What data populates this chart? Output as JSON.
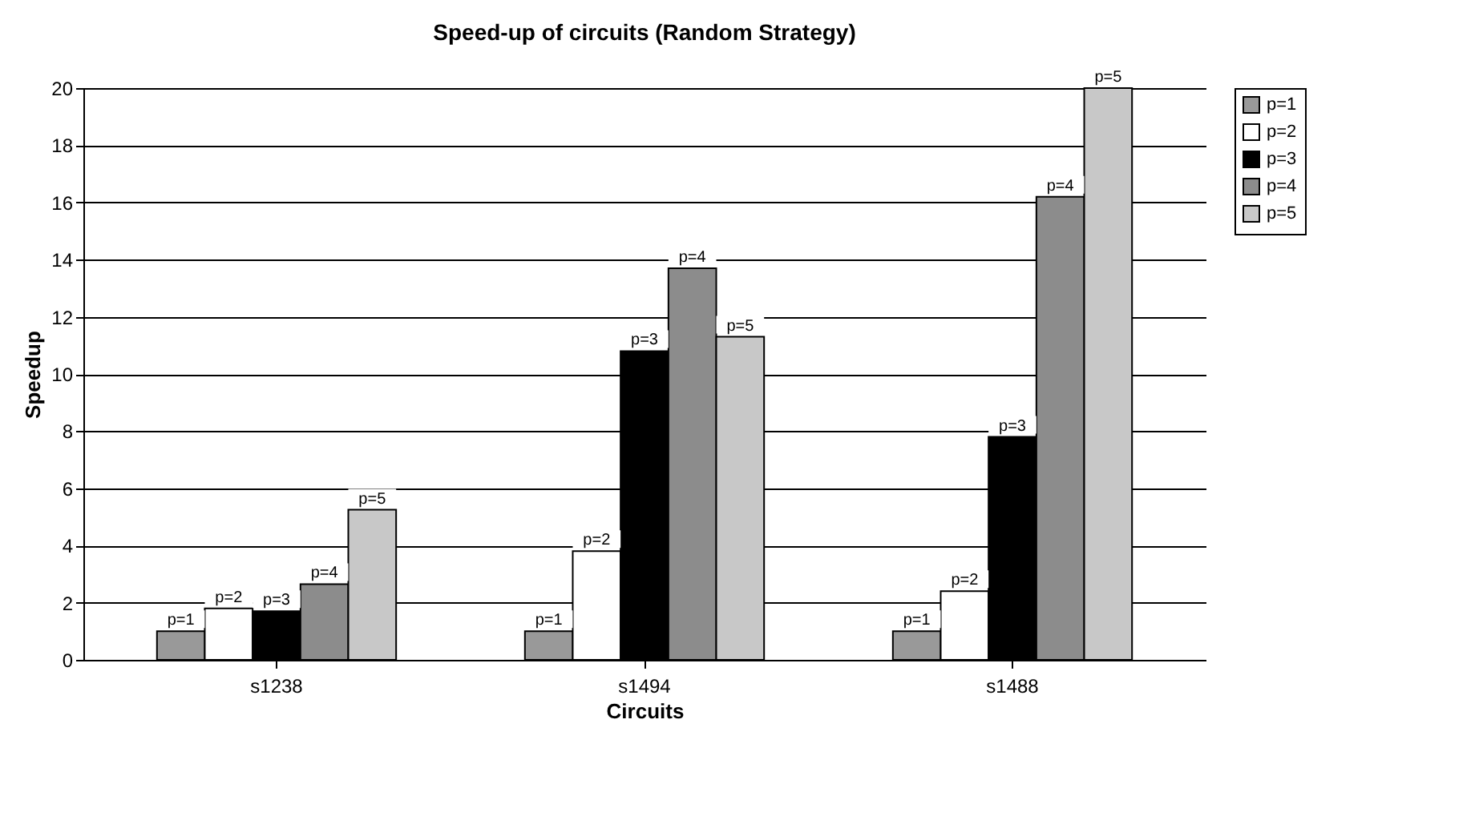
{
  "chart_data": {
    "type": "bar",
    "title": "Speed-up of circuits (Random Strategy)",
    "xlabel": "Circuits",
    "ylabel": "Speedup",
    "categories": [
      "s1238",
      "s1494",
      "s1488"
    ],
    "series": [
      {
        "name": "p=1",
        "color": "#999999",
        "values": [
          1,
          1,
          1
        ]
      },
      {
        "name": "p=2",
        "color": "#ffffff",
        "values": [
          1.8,
          3.8,
          2.4
        ]
      },
      {
        "name": "p=3",
        "color": "#000000",
        "values": [
          1.7,
          10.8,
          7.8
        ]
      },
      {
        "name": "p=4",
        "color": "#8c8c8c",
        "values": [
          2.65,
          13.7,
          16.2
        ]
      },
      {
        "name": "p=5",
        "color": "#c8c8c8",
        "values": [
          5.25,
          11.3,
          20
        ]
      }
    ],
    "ylim": [
      0,
      20
    ],
    "yticks": [
      0,
      2,
      4,
      6,
      8,
      10,
      12,
      14,
      16,
      18,
      20
    ],
    "grid": "y",
    "legend": "right"
  }
}
